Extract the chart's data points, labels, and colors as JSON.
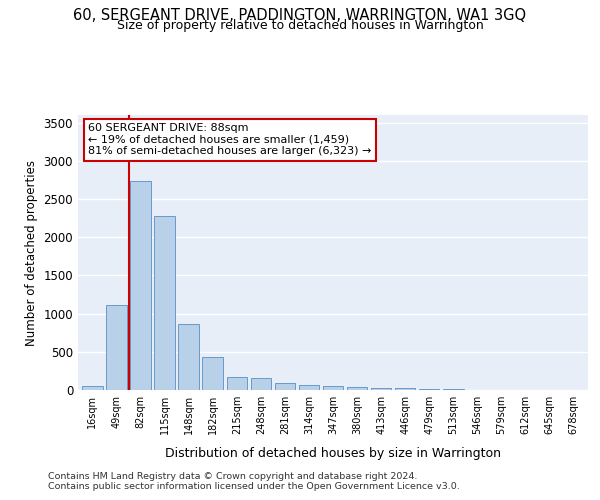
{
  "title": "60, SERGEANT DRIVE, PADDINGTON, WARRINGTON, WA1 3GQ",
  "subtitle": "Size of property relative to detached houses in Warrington",
  "xlabel": "Distribution of detached houses by size in Warrington",
  "ylabel": "Number of detached properties",
  "bar_color": "#b8d0e8",
  "bar_edge_color": "#6699cc",
  "background_color": "#e8eef8",
  "grid_color": "#ffffff",
  "categories": [
    "16sqm",
    "49sqm",
    "82sqm",
    "115sqm",
    "148sqm",
    "182sqm",
    "215sqm",
    "248sqm",
    "281sqm",
    "314sqm",
    "347sqm",
    "380sqm",
    "413sqm",
    "446sqm",
    "479sqm",
    "513sqm",
    "546sqm",
    "579sqm",
    "612sqm",
    "645sqm",
    "678sqm"
  ],
  "values": [
    50,
    1110,
    2730,
    2280,
    870,
    430,
    170,
    160,
    90,
    65,
    50,
    35,
    28,
    22,
    18,
    8,
    5,
    3,
    2,
    2,
    2
  ],
  "vline_x": 1.5,
  "vline_color": "#cc0000",
  "annotation_text": "60 SERGEANT DRIVE: 88sqm\n← 19% of detached houses are smaller (1,459)\n81% of semi-detached houses are larger (6,323) →",
  "annotation_box_color": "#ffffff",
  "annotation_box_edge": "#cc0000",
  "ylim": [
    0,
    3600
  ],
  "yticks": [
    0,
    500,
    1000,
    1500,
    2000,
    2500,
    3000,
    3500
  ],
  "footer1": "Contains HM Land Registry data © Crown copyright and database right 2024.",
  "footer2": "Contains public sector information licensed under the Open Government Licence v3.0."
}
